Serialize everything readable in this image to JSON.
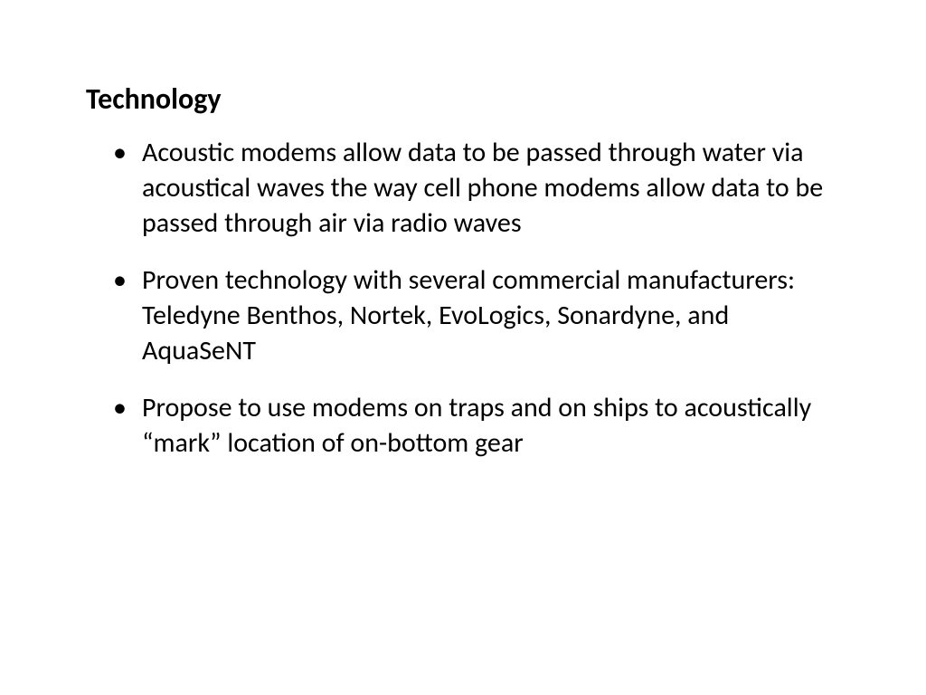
{
  "slide": {
    "title": "Technology",
    "title_fontsize": 32,
    "title_fontweight": 700,
    "title_color": "#000000",
    "body_fontsize": 30,
    "body_color": "#000000",
    "background_color": "#ffffff",
    "font_family": "Calibri",
    "bullets": [
      "Acoustic modems allow data to be passed through water via acoustical waves the way cell phone modems allow data to be passed through air via radio waves",
      "Proven technology with several commercial manufacturers:  Teledyne Benthos, Nortek, EvoLogics, Sonardyne, and AquaSeNT",
      "Propose to use modems on traps and on ships to acoustically “mark” location of on-bottom gear"
    ]
  }
}
